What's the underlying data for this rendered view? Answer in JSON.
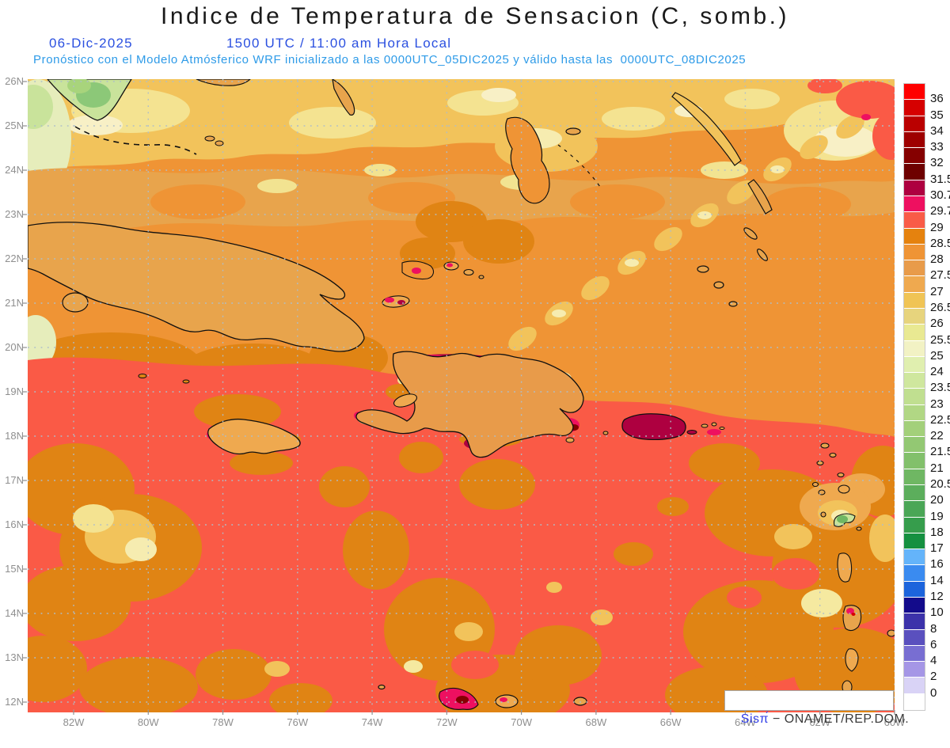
{
  "header": {
    "title": "Indice de Temperatura de Sensacion (C, somb.)",
    "date": "06-Dic-2025",
    "time": "1500 UTC / 11:00 am Hora Local",
    "note": "Pronóstico con el Modelo Atmósferico WRF inicializado a las 0000UTC_05DIC2025 y válido hasta las  0000UTC_08DIC2025"
  },
  "axes": {
    "lat_labels": [
      "26N",
      "25N",
      "24N",
      "23N",
      "22N",
      "21N",
      "20N",
      "19N",
      "18N",
      "17N",
      "16N",
      "15N",
      "14N",
      "13N",
      "12N"
    ],
    "lon_labels": [
      "82W",
      "80W",
      "78W",
      "76W",
      "74W",
      "72W",
      "70W",
      "68W",
      "66W",
      "64W",
      "62W",
      "60W"
    ]
  },
  "colorbar": {
    "labels": [
      "36",
      "35",
      "34",
      "33",
      "32",
      "31.5",
      "30.7",
      "29.7",
      "29",
      "28.5",
      "28",
      "27.5",
      "27",
      "26.5",
      "26",
      "25.5",
      "25",
      "24",
      "23.5",
      "23",
      "22.5",
      "22",
      "21.5",
      "21",
      "20.5",
      "20",
      "19",
      "18",
      "17",
      "16",
      "14",
      "12",
      "10",
      "8",
      "6",
      "4",
      "2",
      "0"
    ],
    "colors": [
      "#FF0000",
      "#D60000",
      "#BA0000",
      "#9E0000",
      "#850000",
      "#6E0000",
      "#AE0040",
      "#EE1060",
      "#F95B47",
      "#E5820E",
      "#EF9435",
      "#E89B4A",
      "#EFA94F",
      "#F0C455",
      "#E7D47D",
      "#E9E992",
      "#F2F2C4",
      "#E0EFAF",
      "#CFE79E",
      "#C0DF90",
      "#B1D784",
      "#A3D07A",
      "#93C873",
      "#82C06B",
      "#6FB763",
      "#5CAE5C",
      "#4AA656",
      "#369D4C",
      "#159040",
      "#64B4FA",
      "#3A8BF0",
      "#1C64DC",
      "#130B8B",
      "#3C32AA",
      "#5A50BE",
      "#786ED2",
      "#A596E6",
      "#D9D3F6",
      "#FFFFFF"
    ]
  },
  "attribution": {
    "brand": "Sisπ́",
    "text": " − ONAMET/REP.DOM."
  },
  "colors": {
    "title": "#1a1a1a",
    "datetime": "#2b50e0",
    "note": "#2e9be8",
    "axis": "#8f8f8f",
    "grid": "#aebeca",
    "coast": "#101010",
    "brand_blue": "#3340e8"
  }
}
